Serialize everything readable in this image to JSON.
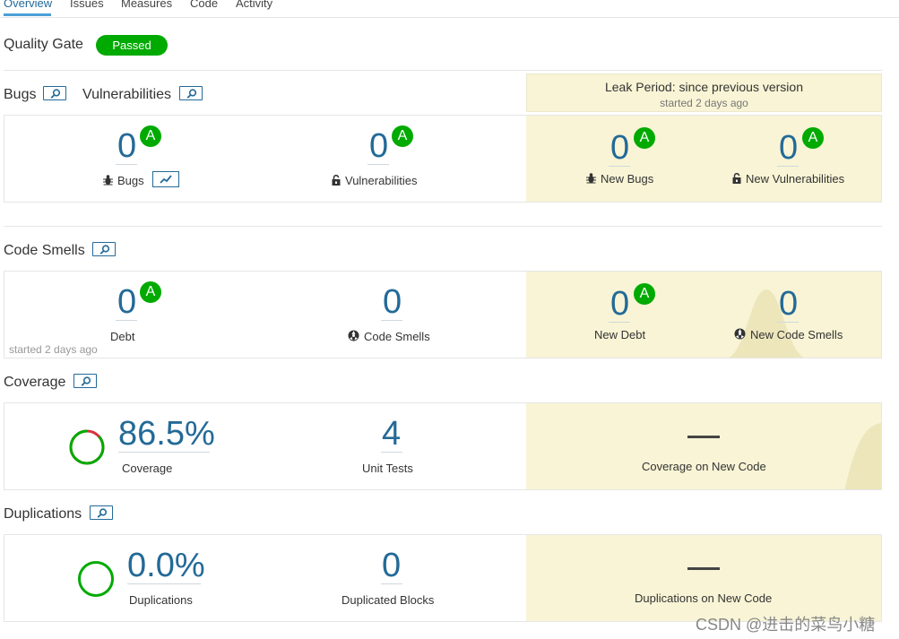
{
  "tabs": [
    "Overview",
    "Issues",
    "Measures",
    "Code",
    "Activity"
  ],
  "quality_gate": {
    "label": "Quality Gate",
    "status": "Passed"
  },
  "leak_period": {
    "title": "Leak Period: since previous version",
    "started": "started 2 days ago"
  },
  "bugs_section": {
    "bugs_title": "Bugs",
    "vulnerabilities_title": "Vulnerabilities"
  },
  "bugs": {
    "value": "0",
    "rating": "A",
    "label": "Bugs"
  },
  "vulnerabilities": {
    "value": "0",
    "rating": "A",
    "label": "Vulnerabilities"
  },
  "new_bugs": {
    "value": "0",
    "rating": "A",
    "label": "New Bugs"
  },
  "new_vulnerabilities": {
    "value": "0",
    "rating": "A",
    "label": "New Vulnerabilities"
  },
  "code_smells_section": {
    "title": "Code Smells"
  },
  "debt": {
    "value": "0",
    "rating": "A",
    "label": "Debt",
    "started": "started 2 days ago"
  },
  "code_smells": {
    "value": "0",
    "label": "Code Smells"
  },
  "new_debt": {
    "value": "0",
    "rating": "A",
    "label": "New Debt"
  },
  "new_code_smells": {
    "value": "0",
    "label": "New Code Smells"
  },
  "coverage_section": {
    "title": "Coverage"
  },
  "coverage": {
    "value": "86.5%",
    "label": "Coverage",
    "percent": 86.5
  },
  "unit_tests": {
    "value": "4",
    "label": "Unit Tests"
  },
  "coverage_new": {
    "label": "Coverage on New Code"
  },
  "duplications_section": {
    "title": "Duplications"
  },
  "duplications": {
    "value": "0.0%",
    "label": "Duplications",
    "percent": 0.0
  },
  "duplicated_blocks": {
    "value": "0",
    "label": "Duplicated Blocks"
  },
  "duplications_new": {
    "label": "Duplications on New Code"
  },
  "watermark": "CSDN @进击的菜鸟小糖",
  "colors": {
    "accent": "#236a97",
    "passed": "#00aa00",
    "leak": "#f8f4d5",
    "coverage_red": "#d4333f"
  },
  "icons": [
    "search-icon",
    "bug-icon",
    "lock-icon",
    "code-smell-icon",
    "trend-chart-icon"
  ]
}
